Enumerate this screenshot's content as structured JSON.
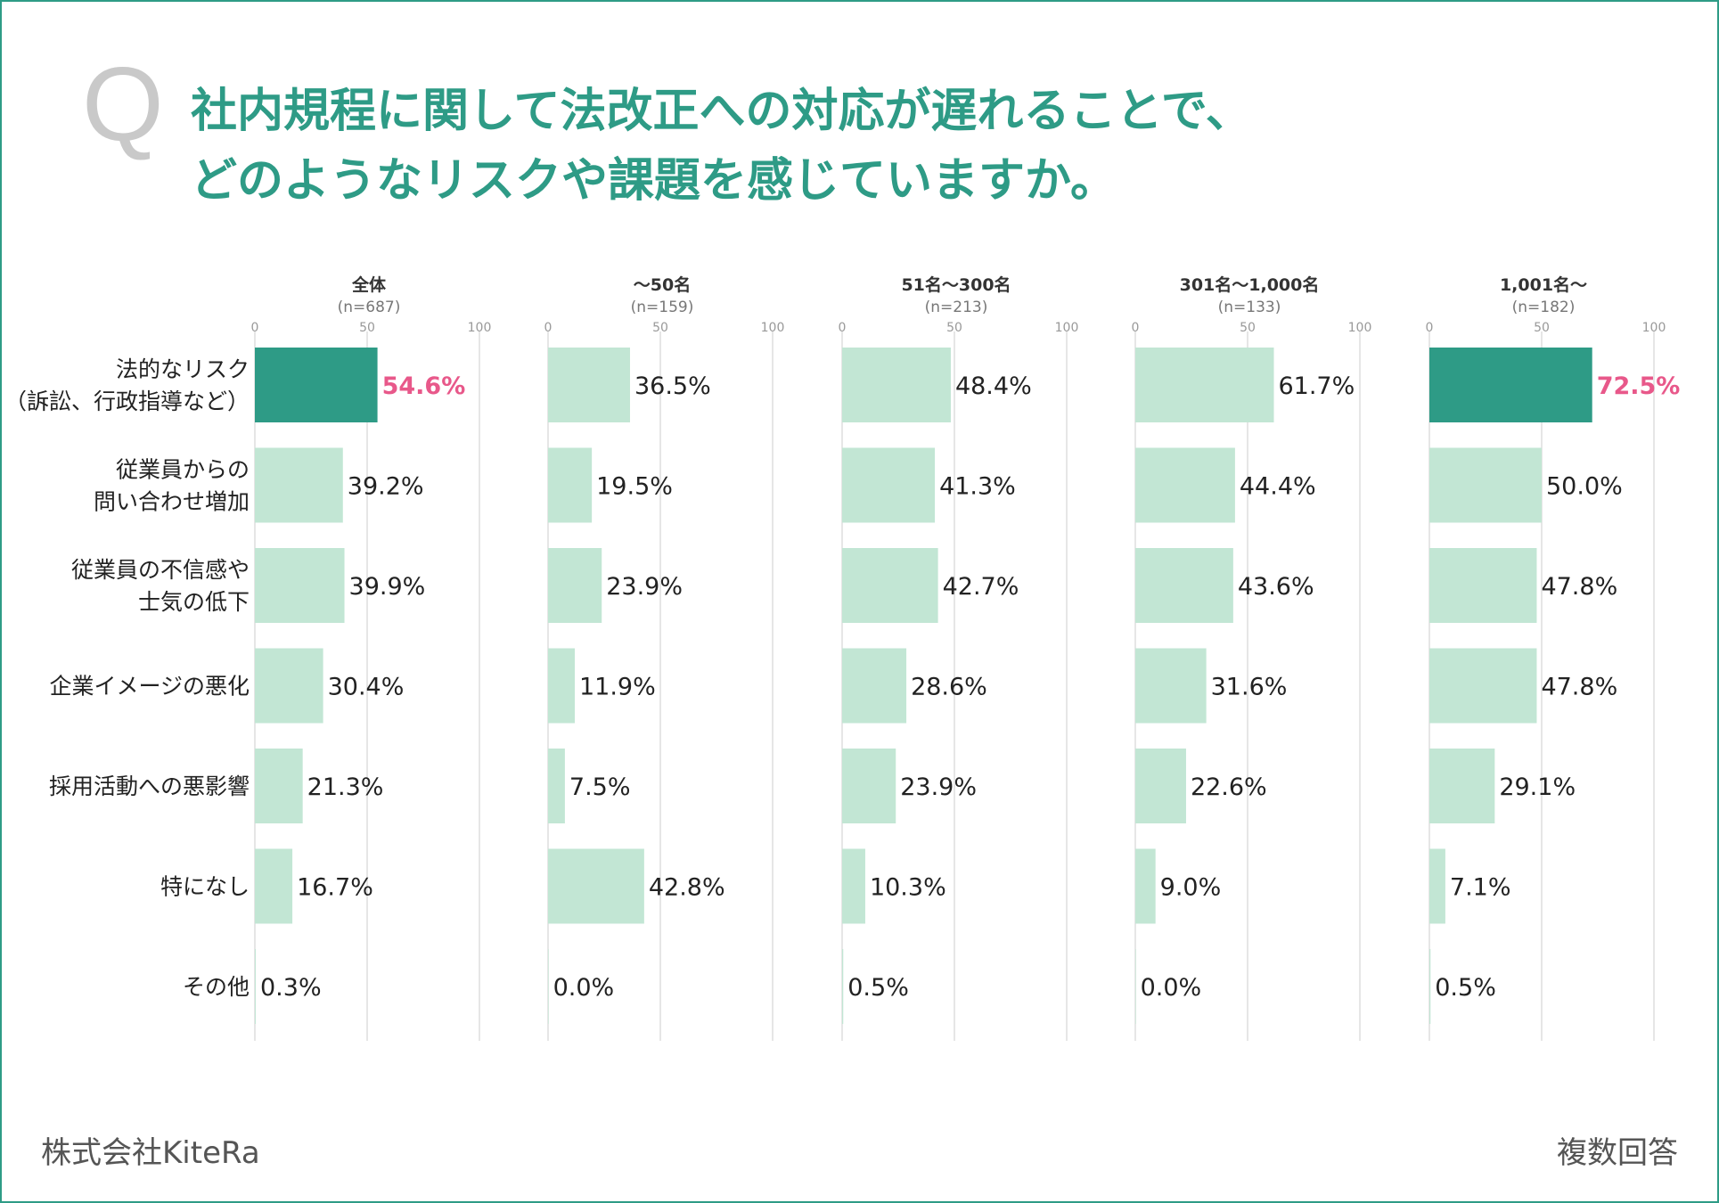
{
  "title": {
    "mark": "Q",
    "line1": "社内規程に関して法改正への対応が遅れることで、",
    "line2": "どのようなリスクや課題を感じていますか。"
  },
  "footer": {
    "company": "株式会社KiteRa",
    "note": "複数回答"
  },
  "colors": {
    "accent": "#2e9b86",
    "bar": "#c2e6d4",
    "highlight_text": "#e8588a",
    "grid": "#dddddd"
  },
  "chart_data": {
    "type": "bar",
    "orientation": "horizontal",
    "axis_ticks": [
      "0",
      "50",
      "100"
    ],
    "xlim": [
      0,
      100
    ],
    "categories": [
      [
        "法的なリスク",
        "（訴訟、行政指導など）"
      ],
      [
        "従業員からの",
        "問い合わせ増加"
      ],
      [
        "従業員の不信感や",
        "士気の低下"
      ],
      [
        "企業イメージの悪化"
      ],
      [
        "採用活動への悪影響"
      ],
      [
        "特になし"
      ],
      [
        "その他"
      ]
    ],
    "panels": [
      {
        "name": "全体",
        "n": "(n=687)",
        "values": [
          54.6,
          39.2,
          39.9,
          30.4,
          21.3,
          16.7,
          0.3
        ],
        "labels": [
          "54.6%",
          "39.2%",
          "39.9%",
          "30.4%",
          "21.3%",
          "16.7%",
          "0.3%"
        ],
        "highlight": 0
      },
      {
        "name": "〜50名",
        "n": "(n=159)",
        "values": [
          36.5,
          19.5,
          23.9,
          11.9,
          7.5,
          42.8,
          0.0
        ],
        "labels": [
          "36.5%",
          "19.5%",
          "23.9%",
          "11.9%",
          "7.5%",
          "42.8%",
          "0.0%"
        ],
        "highlight": null
      },
      {
        "name": "51名〜300名",
        "n": "(n=213)",
        "values": [
          48.4,
          41.3,
          42.7,
          28.6,
          23.9,
          10.3,
          0.5
        ],
        "labels": [
          "48.4%",
          "41.3%",
          "42.7%",
          "28.6%",
          "23.9%",
          "10.3%",
          "0.5%"
        ],
        "highlight": null
      },
      {
        "name": "301名〜1,000名",
        "n": "(n=133)",
        "values": [
          61.7,
          44.4,
          43.6,
          31.6,
          22.6,
          9.0,
          0.0
        ],
        "labels": [
          "61.7%",
          "44.4%",
          "43.6%",
          "31.6%",
          "22.6%",
          "9.0%",
          "0.0%"
        ],
        "highlight": null
      },
      {
        "name": "1,001名〜",
        "n": "(n=182)",
        "values": [
          72.5,
          50.0,
          47.8,
          47.8,
          29.1,
          7.1,
          0.5
        ],
        "labels": [
          "72.5%",
          "50.0%",
          "47.8%",
          "47.8%",
          "29.1%",
          "7.1%",
          "0.5%"
        ],
        "highlight": 0
      }
    ]
  }
}
